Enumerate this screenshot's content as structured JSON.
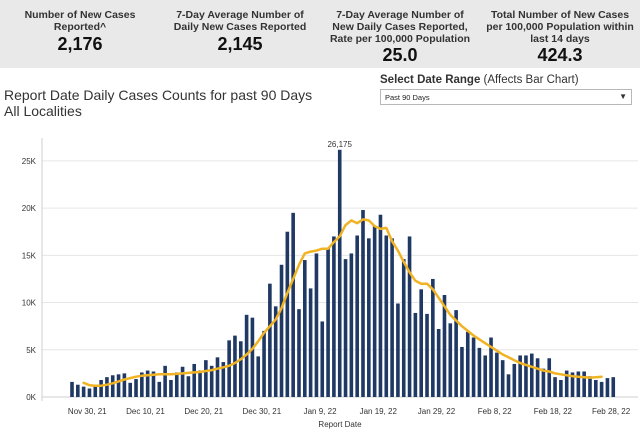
{
  "kpis": [
    {
      "label": "Number of New Cases\nReported^",
      "value": "2,176"
    },
    {
      "label": "7-Day Average Number of\nDaily New Cases Reported",
      "value": "2,145"
    },
    {
      "label": "7-Day Average Number of\nNew Daily Cases Reported,\nRate per 100,000 Population",
      "value": "25.0"
    },
    {
      "label": "Total Number of New Cases\nper 100,000 Population within\nlast 14 days",
      "value": "424.3"
    }
  ],
  "title": "Report Date Daily Cases Counts for past 90 Days",
  "subtitle": "All Localities",
  "date_range": {
    "label_bold": "Select Date Range",
    "label_rest": " (Affects Bar Chart)",
    "selected": "Past 90 Days",
    "caret_icon": "chevron-down-icon"
  },
  "chart_data": {
    "type": "bar",
    "xlabel": "Report Date",
    "ylabel": "",
    "ylim": [
      0,
      27000
    ],
    "yticks": [
      0,
      5000,
      10000,
      15000,
      20000,
      25000
    ],
    "ytick_labels": [
      "0K",
      "5K",
      "10K",
      "15K",
      "20K",
      "25K"
    ],
    "x_tick_labels": [
      "Nov 30, 21",
      "Dec 10, 21",
      "Dec 20, 21",
      "Dec 30, 21",
      "Jan 9, 22",
      "Jan 19, 22",
      "Jan 29, 22",
      "Feb 8, 22",
      "Feb 18, 22",
      "Feb 28, 22"
    ],
    "x_tick_day_index": [
      4,
      14,
      24,
      34,
      44,
      54,
      64,
      74,
      84,
      94
    ],
    "peak_label": "26,175",
    "bar_color": "#1f3864",
    "line_color": "#f0b323",
    "daily_cases": [
      1600,
      1300,
      1100,
      900,
      1300,
      1800,
      2100,
      2300,
      2400,
      2500,
      1500,
      1900,
      2600,
      2800,
      2700,
      1600,
      3300,
      1800,
      2600,
      3200,
      2200,
      3500,
      2800,
      3900,
      3300,
      4200,
      3700,
      6000,
      6500,
      5900,
      8700,
      8400,
      4300,
      7000,
      12000,
      9600,
      14000,
      17500,
      19500,
      9300,
      14500,
      11500,
      15200,
      8000,
      15800,
      17000,
      26175,
      14600,
      15200,
      17100,
      19800,
      16800,
      18100,
      19300,
      17100,
      16800,
      9900,
      14600,
      17000,
      8900,
      11400,
      8800,
      12500,
      7200,
      10800,
      7800,
      9200,
      5300,
      6900,
      6300,
      5200,
      4400,
      6300,
      4700,
      3900,
      2400,
      3500,
      4400,
      4400,
      4600,
      4100,
      3000,
      4100,
      2100,
      1800,
      2800,
      2600,
      2700,
      2700,
      2200,
      1800,
      1600,
      2000,
      2100
    ],
    "avg_start_index": 2,
    "seven_day_avg": [
      1500,
      1250,
      1200,
      1200,
      1300,
      1450,
      1650,
      1850,
      2000,
      2150,
      2250,
      2300,
      2350,
      2400,
      2400,
      2400,
      2450,
      2500,
      2550,
      2600,
      2650,
      2750,
      2850,
      3000,
      3150,
      3300,
      3600,
      4000,
      4500,
      5100,
      5900,
      6800,
      7500,
      8200,
      9400,
      11000,
      12500,
      14000,
      15200,
      15400,
      15500,
      15700,
      15700,
      16400,
      17000,
      18200,
      18700,
      18400,
      18800,
      18700,
      18100,
      17800,
      17900,
      16500,
      15500,
      14300,
      13200,
      12300,
      12000,
      12000,
      11400,
      10500,
      9600,
      8700,
      8100,
      7500,
      7000,
      6500,
      6100,
      5700,
      5300,
      4900,
      4500,
      4200,
      3900,
      3600,
      3400,
      3200,
      3000,
      2800,
      2700,
      2500,
      2400,
      2300,
      2200,
      2150,
      2100,
      2050,
      2100,
      2145
    ]
  }
}
